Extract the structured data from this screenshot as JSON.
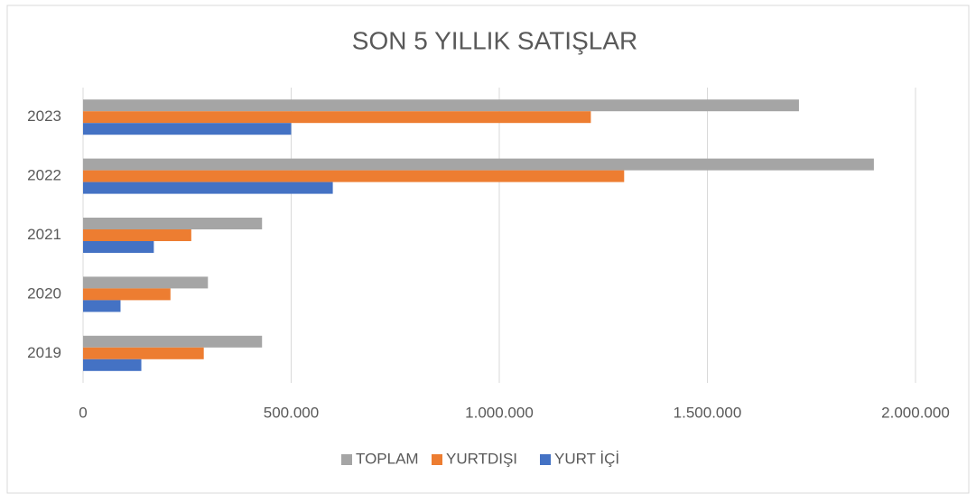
{
  "chart_data": {
    "type": "bar",
    "orientation": "horizontal",
    "title": "SON 5 YILLIK SATIŞLAR",
    "categories": [
      "2019",
      "2020",
      "2021",
      "2022",
      "2023"
    ],
    "series": [
      {
        "name": "TOPLAM",
        "color": "#a5a5a5",
        "values": [
          430000,
          300000,
          430000,
          1900000,
          1720000
        ]
      },
      {
        "name": "YURTDIŞI",
        "color": "#ed7d31",
        "values": [
          290000,
          210000,
          260000,
          1300000,
          1220000
        ]
      },
      {
        "name": "YURT İÇİ",
        "color": "#4472c4",
        "values": [
          140000,
          90000,
          170000,
          600000,
          500000
        ]
      }
    ],
    "xlim": [
      0,
      2000000
    ],
    "xticks": [
      0,
      {
        "value": 500000,
        "label": "500.000"
      },
      {
        "value": 1000000,
        "label": "1.000.000"
      },
      {
        "value": 1500000,
        "label": "1.500.000"
      },
      {
        "value": 2000000,
        "label": "2.000.000"
      }
    ],
    "grid": true,
    "legend": "bottom"
  }
}
